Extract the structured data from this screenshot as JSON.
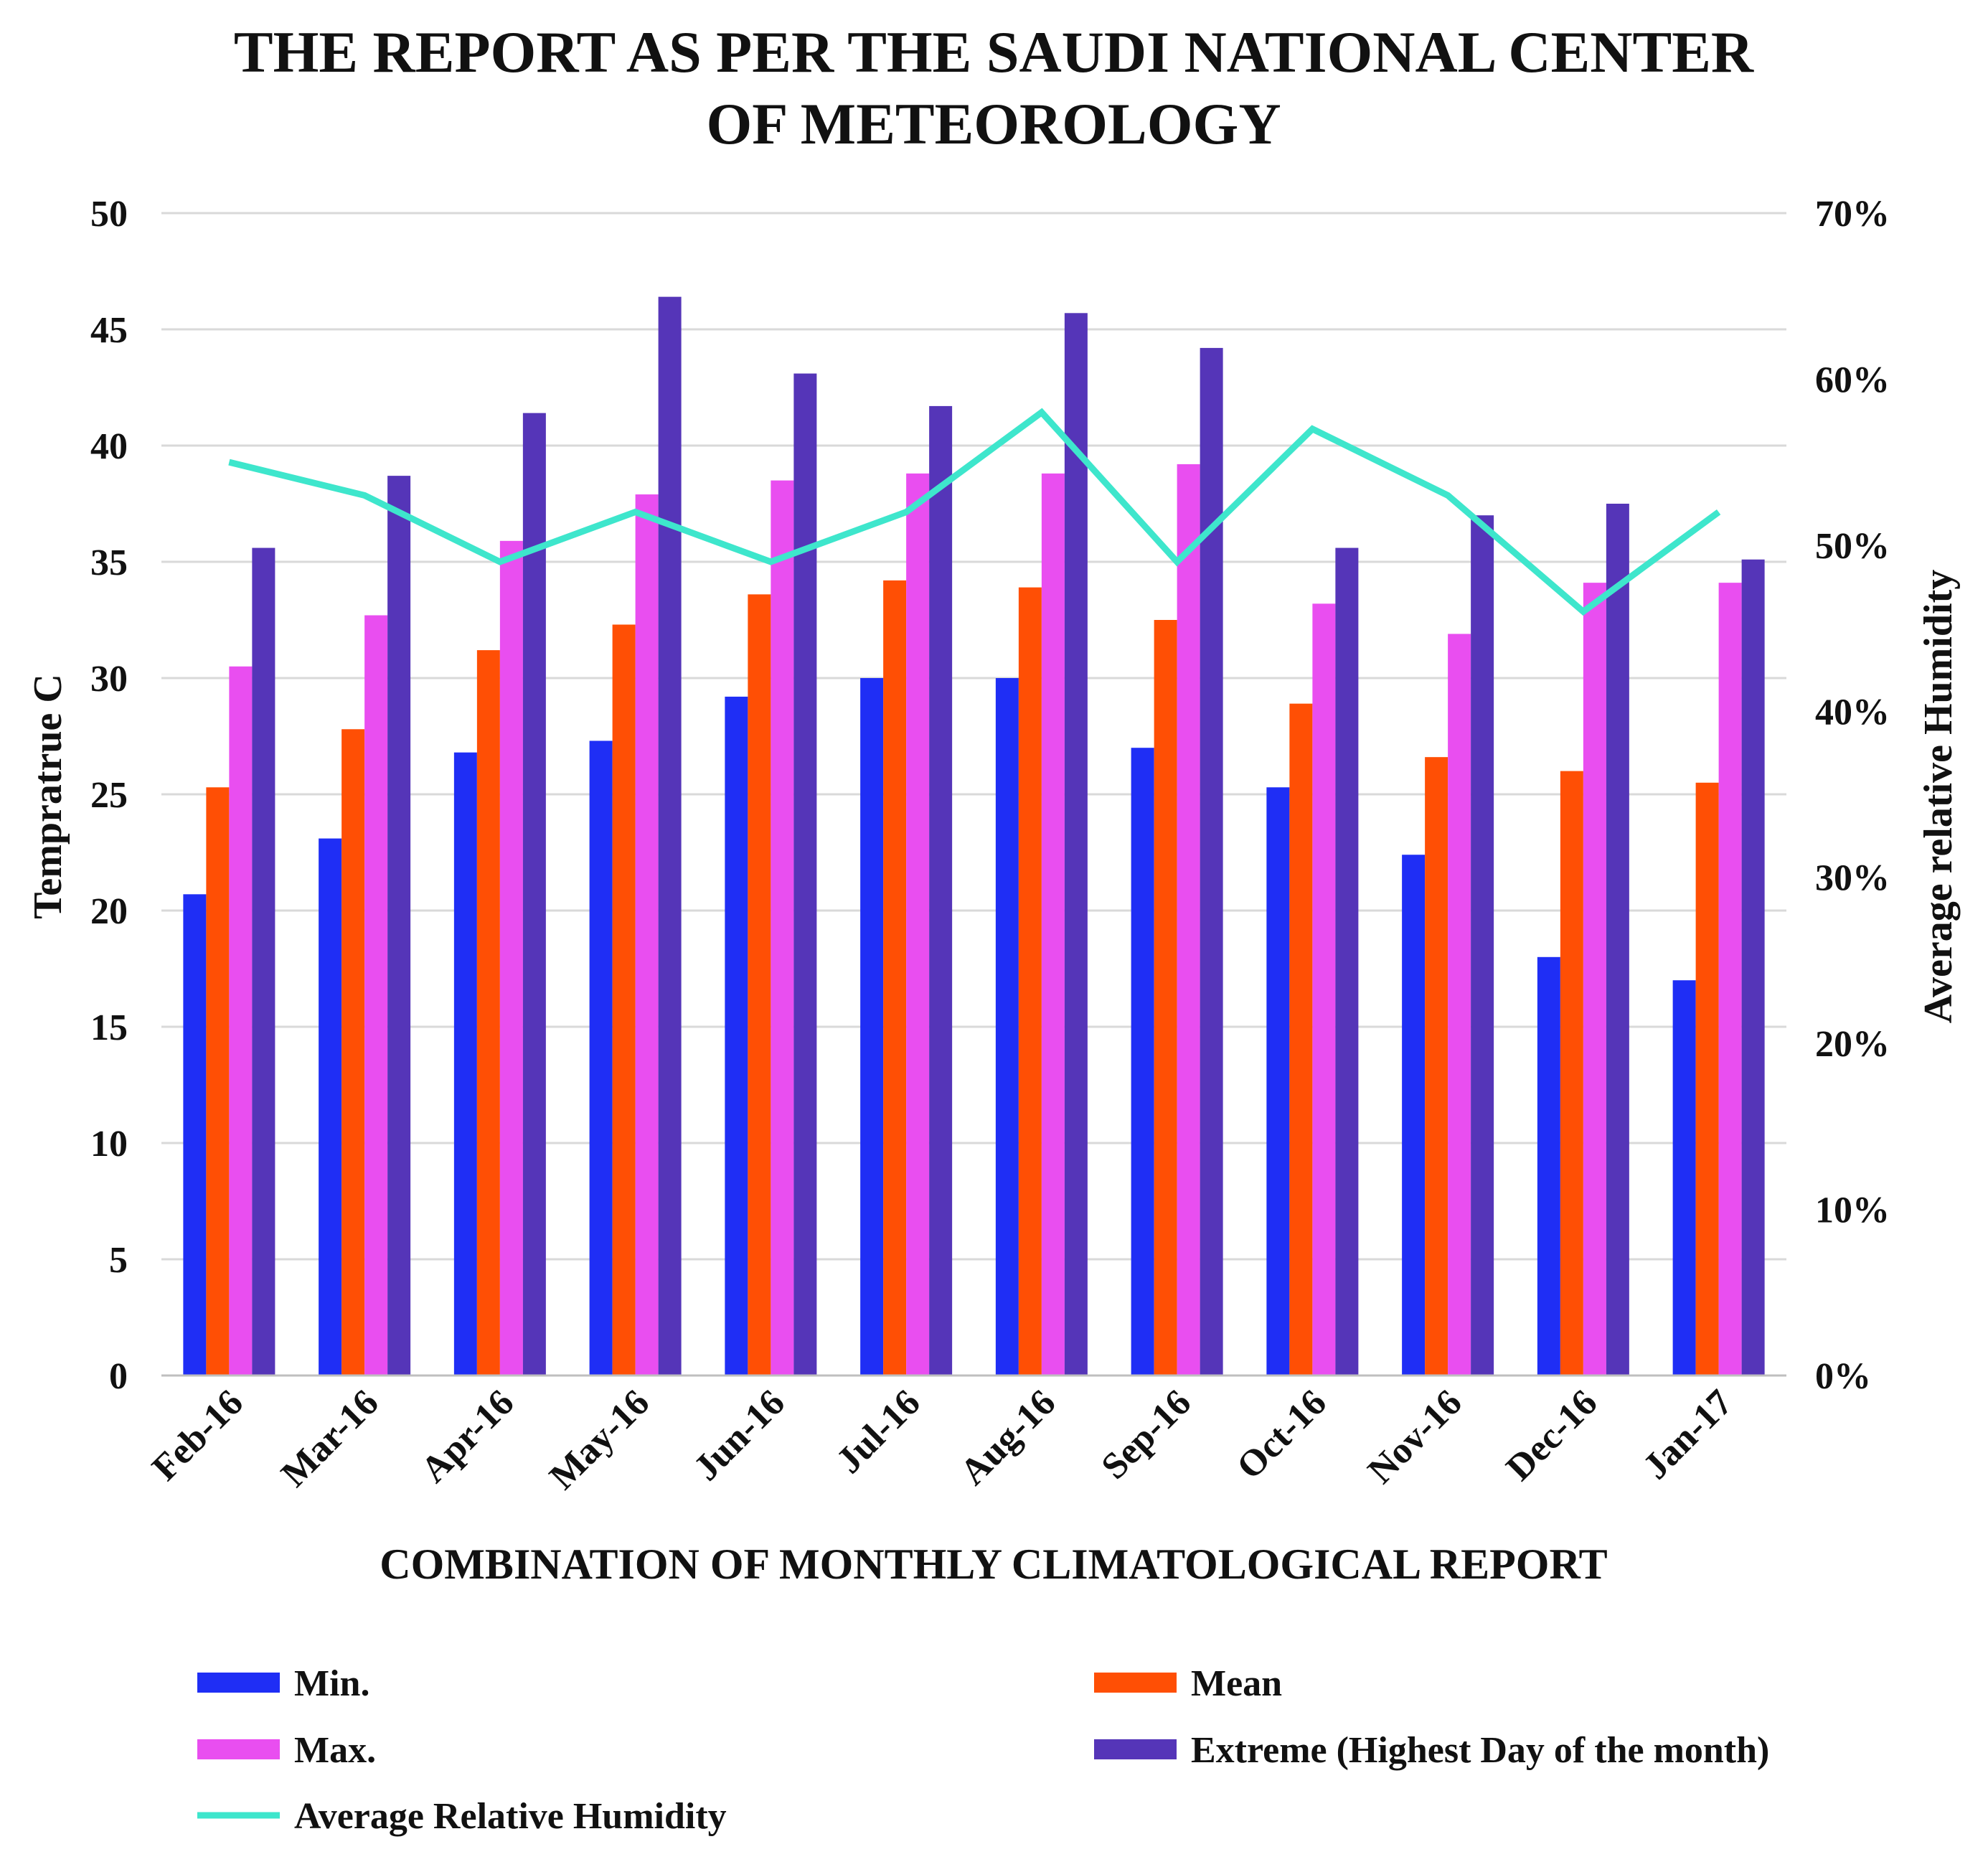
{
  "chart_data": {
    "type": "bar",
    "title_lines": [
      "THE REPORT AS PER THE SAUDI NATIONAL CENTER",
      "OF METEOROLOGY"
    ],
    "xlabel": "COMBINATION OF MONTHLY CLIMATOLOGICAL REPORT",
    "ylabel": "Tempratrue C",
    "y2label": "Average relative Humidity",
    "ylim": [
      0,
      50
    ],
    "yticks": [
      "0",
      "5",
      "10",
      "15",
      "20",
      "25",
      "30",
      "35",
      "40",
      "45",
      "50"
    ],
    "y2lim": [
      0,
      70
    ],
    "y2ticks": [
      "0%",
      "10%",
      "20%",
      "30%",
      "40%",
      "50%",
      "60%",
      "70%"
    ],
    "grid": true,
    "legend_position": "bottom",
    "categories": [
      "Feb-16",
      "Mar-16",
      "Apr-16",
      "May-16",
      "Jun-16",
      "Jul-16",
      "Aug-16",
      "Sep-16",
      "Oct-16",
      "Nov-16",
      "Dec-16",
      "Jan-17"
    ],
    "series": [
      {
        "name": "Min.",
        "type": "bar",
        "color": "#1f2ef5",
        "values": [
          20.7,
          23.1,
          26.8,
          27.3,
          29.2,
          30.0,
          30.0,
          27.0,
          25.3,
          22.4,
          18.0,
          17.0
        ]
      },
      {
        "name": "Mean",
        "type": "bar",
        "color": "#ff4f05",
        "values": [
          25.3,
          27.8,
          31.2,
          32.3,
          33.6,
          34.2,
          33.9,
          32.5,
          28.9,
          26.6,
          26.0,
          25.5
        ]
      },
      {
        "name": "Max.",
        "type": "bar",
        "color": "#e94ef0",
        "values": [
          30.5,
          32.7,
          35.9,
          37.9,
          38.5,
          38.8,
          38.8,
          39.2,
          33.2,
          31.9,
          34.1,
          34.1
        ]
      },
      {
        "name": "Extreme (Highest Day of the month)",
        "type": "bar",
        "color": "#5535b8",
        "values": [
          35.6,
          38.7,
          41.4,
          46.4,
          43.1,
          41.7,
          45.7,
          44.2,
          35.6,
          37.0,
          37.5,
          35.1
        ]
      },
      {
        "name": "Average Relative Humidity",
        "type": "line",
        "axis": "right",
        "color": "#3ee6cc",
        "values": [
          55,
          53,
          49,
          52,
          49,
          52,
          58,
          49,
          57,
          53,
          46,
          52
        ]
      }
    ]
  }
}
